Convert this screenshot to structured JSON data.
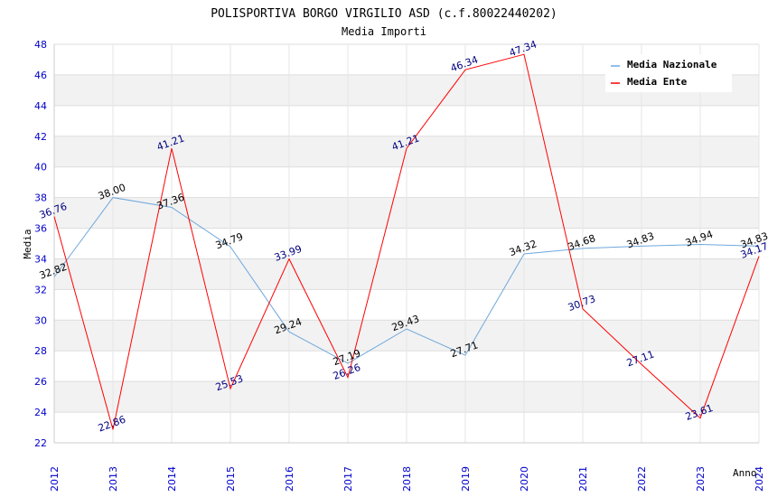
{
  "chart_data": {
    "type": "line",
    "title": "POLISPORTIVA BORGO VIRGILIO ASD (c.f.80022440202)",
    "subtitle": "Media Importi",
    "xlabel": "Anno",
    "ylabel": "Media",
    "ylim": [
      22,
      48
    ],
    "yticks": [
      "22",
      "24",
      "26",
      "28",
      "30",
      "32",
      "34",
      "36",
      "38",
      "40",
      "42",
      "44",
      "46",
      "48"
    ],
    "categories": [
      "2012",
      "2013",
      "2014",
      "2015",
      "2016",
      "2017",
      "2018",
      "2019",
      "2020",
      "2021",
      "2022",
      "2023",
      "2024"
    ],
    "series": [
      {
        "name": "Media Nazionale",
        "color": "#6fa8dc",
        "label_color": "#000000",
        "values": [
          32.82,
          38.0,
          37.36,
          34.79,
          29.24,
          27.19,
          29.43,
          27.71,
          34.32,
          34.68,
          34.83,
          34.94,
          34.83
        ],
        "labels": [
          "32.82",
          "38.00",
          "37.36",
          "34.79",
          "29.24",
          "27.19",
          "29.43",
          "27.71",
          "34.32",
          "34.68",
          "34.83",
          "34.94",
          "34.83"
        ]
      },
      {
        "name": "Media Ente",
        "color": "#ff0000",
        "label_color": "#000080",
        "values": [
          36.76,
          22.86,
          41.21,
          25.53,
          33.99,
          26.26,
          41.21,
          46.34,
          47.34,
          30.73,
          27.11,
          23.61,
          34.17
        ],
        "labels": [
          "36.76",
          "22.86",
          "41.21",
          "25.53",
          "33.99",
          "26.26",
          "41.21",
          "46.34",
          "47.34",
          "30.73",
          "27.11",
          "23.61",
          "34.17"
        ]
      }
    ],
    "legend_position": "top-right",
    "grid": true
  }
}
